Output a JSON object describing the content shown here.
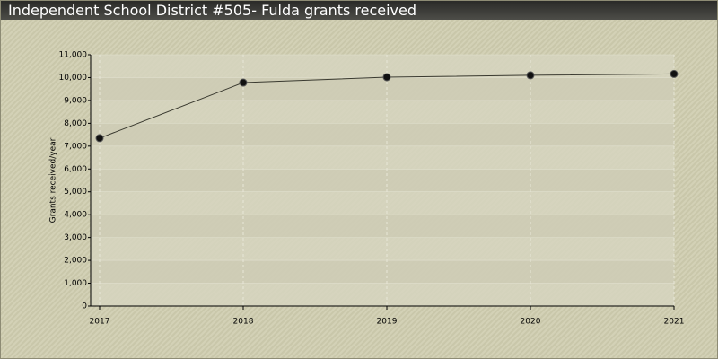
{
  "chart_data": {
    "type": "line",
    "title": "Independent School District #505- Fulda grants received",
    "y_label": "Grants received/year",
    "x": [
      2017,
      2018,
      2019,
      2020,
      2021
    ],
    "values": [
      7350,
      9780,
      10020,
      10100,
      10160
    ],
    "color": "#3a3a30",
    "marker_color": "#111111",
    "xlim": [
      2017,
      2021
    ],
    "xticks": [
      2017,
      2018,
      2019,
      2020,
      2021
    ],
    "ylim": [
      0,
      11000
    ],
    "yticks": [
      0,
      {
        "value": 1000,
        "label": "1,000"
      },
      {
        "value": 2000,
        "label": "2,000"
      },
      {
        "value": 3000,
        "label": "3,000"
      },
      {
        "value": 4000,
        "label": "4,000"
      },
      {
        "value": 5000,
        "label": "5,000"
      },
      {
        "value": 6000,
        "label": "6,000"
      },
      {
        "value": 7000,
        "label": "7,000"
      },
      {
        "value": 8000,
        "label": "8,000"
      },
      {
        "value": 9000,
        "label": "9,000"
      },
      {
        "value": 10000,
        "label": "10,000"
      },
      {
        "value": 11000,
        "label": "11,000"
      }
    ],
    "grid": true
  }
}
